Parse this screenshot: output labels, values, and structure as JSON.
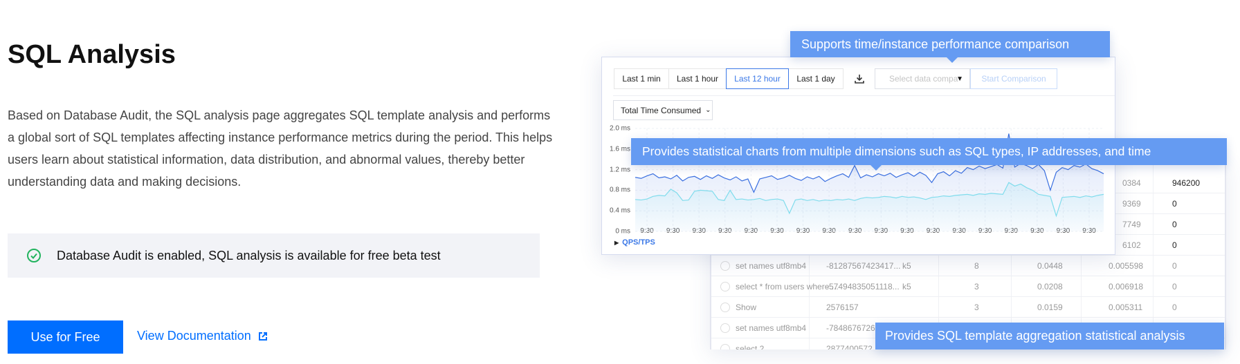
{
  "title": "SQL Analysis",
  "description": "Based on Database Audit, the SQL analysis page aggregates SQL template analysis and performs a global sort of SQL templates affecting instance performance metrics during the period. This helps users learn about statistical information, data distribution, and abnormal values, thereby better understanding data and making decisions.",
  "banner": {
    "icon": "check-circle-icon",
    "text": "Database Audit is enabled, SQL analysis is available for free beta test",
    "icon_color": "#22b35e"
  },
  "actions": {
    "primary": "Use for Free",
    "link": "View Documentation",
    "link_icon": "external-link-icon",
    "accent": "#006eff"
  },
  "preview": {
    "time_ranges": [
      "Last 1 min",
      "Last 1 hour",
      "Last 12 hour",
      "Last 1 day"
    ],
    "selected_range": "Last 12 hour",
    "compare_placeholder": "Select data compa",
    "start_comparison": "Start Comparison",
    "metric": "Total Time Consumed",
    "collapsed_section": "QPS/TPS",
    "table": {
      "partial_rows": [
        [
          "0384",
          "946200"
        ],
        [
          "9369",
          "0"
        ],
        [
          "7749",
          "0"
        ],
        [
          "6102",
          "0"
        ]
      ],
      "rows": [
        [
          "set names utf8mb4",
          "-81287567423417...",
          "k5",
          "8",
          "0.0448",
          "0.005598",
          "0"
        ],
        [
          "select * from users where ...",
          "-57494835051118...",
          "k5",
          "3",
          "0.0208",
          "0.006918",
          "0"
        ],
        [
          "Show",
          "2576157",
          "",
          "3",
          "0.0159",
          "0.005311",
          "0"
        ],
        [
          "set names utf8mb4",
          "-78486767265",
          "",
          "",
          "",
          "",
          ""
        ],
        [
          "select 2",
          "2877400572",
          "",
          "",
          "",
          "",
          ""
        ]
      ]
    }
  },
  "tooltips": {
    "comparison": "Supports time/instance performance comparison",
    "charts": "Provides statistical charts from multiple dimensions such as SQL types, IP addresses, and time",
    "aggregation": "Provides SQL template aggregation statistical analysis",
    "color": "#659bf2"
  },
  "chart_data": {
    "type": "area",
    "ylim": [
      0,
      2.0
    ],
    "yticks": [
      "2.0 ms",
      "1.6 ms",
      "1.2 ms",
      "0.8 ms",
      "0.4 ms",
      "0 ms"
    ],
    "xticks": [
      "9:30",
      "9:30",
      "9:30",
      "9:30",
      "9:30",
      "9:30",
      "9:30",
      "9:30",
      "9:30",
      "9:30",
      "9:30",
      "9:30",
      "9:30",
      "9:30",
      "9:30",
      "9:30",
      "9:30",
      "9:30"
    ],
    "grid": true,
    "series": [
      {
        "color": "#3a6fe0",
        "values": [
          1.05,
          1.03,
          1.08,
          1.12,
          1.04,
          1.06,
          1.02,
          1.09,
          0.98,
          1.05,
          1.07,
          1.01,
          1.08,
          1.03,
          1.1,
          1.04,
          1.0,
          1.06,
          0.98,
          1.02,
          0.76,
          1.02,
          1.05,
          1.08,
          1.01,
          1.04,
          1.09,
          1.03,
          0.99,
          1.06,
          1.02,
          1.07,
          0.97,
          1.03,
          1.08,
          1.12,
          1.05,
          1.28,
          1.04,
          1.1,
          1.06,
          1.12,
          1.08,
          1.13,
          1.05,
          1.1,
          1.14,
          1.07,
          1.15,
          1.09,
          0.95,
          1.12,
          1.16,
          1.08,
          1.18,
          1.13,
          1.24,
          1.2,
          1.27,
          1.22,
          1.26,
          1.3,
          1.23,
          1.9,
          1.25,
          1.32,
          1.28,
          1.22,
          1.3,
          1.18,
          0.8,
          1.15,
          1.24,
          1.2,
          1.28,
          1.25,
          1.31,
          1.22,
          1.18,
          1.12
        ]
      },
      {
        "color": "#7fdcec",
        "values": [
          0.62,
          0.61,
          0.63,
          0.68,
          0.7,
          0.69,
          0.82,
          0.75,
          0.6,
          0.61,
          0.78,
          0.8,
          0.79,
          0.78,
          0.62,
          0.6,
          0.8,
          0.62,
          0.63,
          0.61,
          0.62,
          0.64,
          0.6,
          0.62,
          0.63,
          0.6,
          0.35,
          0.61,
          0.63,
          0.6,
          0.62,
          0.59,
          0.61,
          0.6,
          0.62,
          0.61,
          0.63,
          0.6,
          0.64,
          0.66,
          0.65,
          0.66,
          0.68,
          0.67,
          0.65,
          0.68,
          0.66,
          0.67,
          0.65,
          0.62,
          0.66,
          0.67,
          0.69,
          0.68,
          0.7,
          0.71,
          0.72,
          0.7,
          0.73,
          0.72,
          0.74,
          0.73,
          0.72,
          0.95,
          0.88,
          0.92,
          0.85,
          0.8,
          0.72,
          0.7,
          0.68,
          0.3,
          0.66,
          0.67,
          0.68,
          0.66,
          0.69,
          0.67,
          0.7,
          0.72
        ]
      }
    ]
  }
}
